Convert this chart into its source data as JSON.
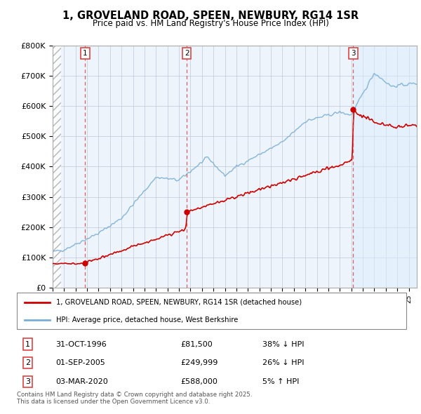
{
  "title": "1, GROVELAND ROAD, SPEEN, NEWBURY, RG14 1SR",
  "subtitle": "Price paid vs. HM Land Registry's House Price Index (HPI)",
  "ylim": [
    0,
    800000
  ],
  "xlim_start": 1994.0,
  "xlim_end": 2025.7,
  "yticks": [
    0,
    100000,
    200000,
    300000,
    400000,
    500000,
    600000,
    700000,
    800000
  ],
  "ytick_labels": [
    "£0",
    "£100K",
    "£200K",
    "£300K",
    "£400K",
    "£500K",
    "£600K",
    "£700K",
    "£800K"
  ],
  "transactions": [
    {
      "num": 1,
      "date": "31-OCT-1996",
      "price": 81500,
      "year": 1996.83,
      "hpi_rel": "38% ↓ HPI"
    },
    {
      "num": 2,
      "date": "01-SEP-2005",
      "price": 249999,
      "year": 2005.67,
      "hpi_rel": "26% ↓ HPI"
    },
    {
      "num": 3,
      "date": "03-MAR-2020",
      "price": 588000,
      "year": 2020.17,
      "hpi_rel": "5% ↑ HPI"
    }
  ],
  "legend_entry1": "1, GROVELAND ROAD, SPEEN, NEWBURY, RG14 1SR (detached house)",
  "legend_entry2": "HPI: Average price, detached house, West Berkshire",
  "footer1": "Contains HM Land Registry data © Crown copyright and database right 2025.",
  "footer2": "This data is licensed under the Open Government Licence v3.0.",
  "price_line_color": "#cc0000",
  "hpi_line_color": "#7aaed6",
  "hpi_fill_color": "#ddeeff",
  "grid_color": "#cccccc",
  "vline_color": "#dd4444",
  "marker_color": "#cc0000",
  "background_color": "#ffffff",
  "hatch_region_end": 1994.75
}
